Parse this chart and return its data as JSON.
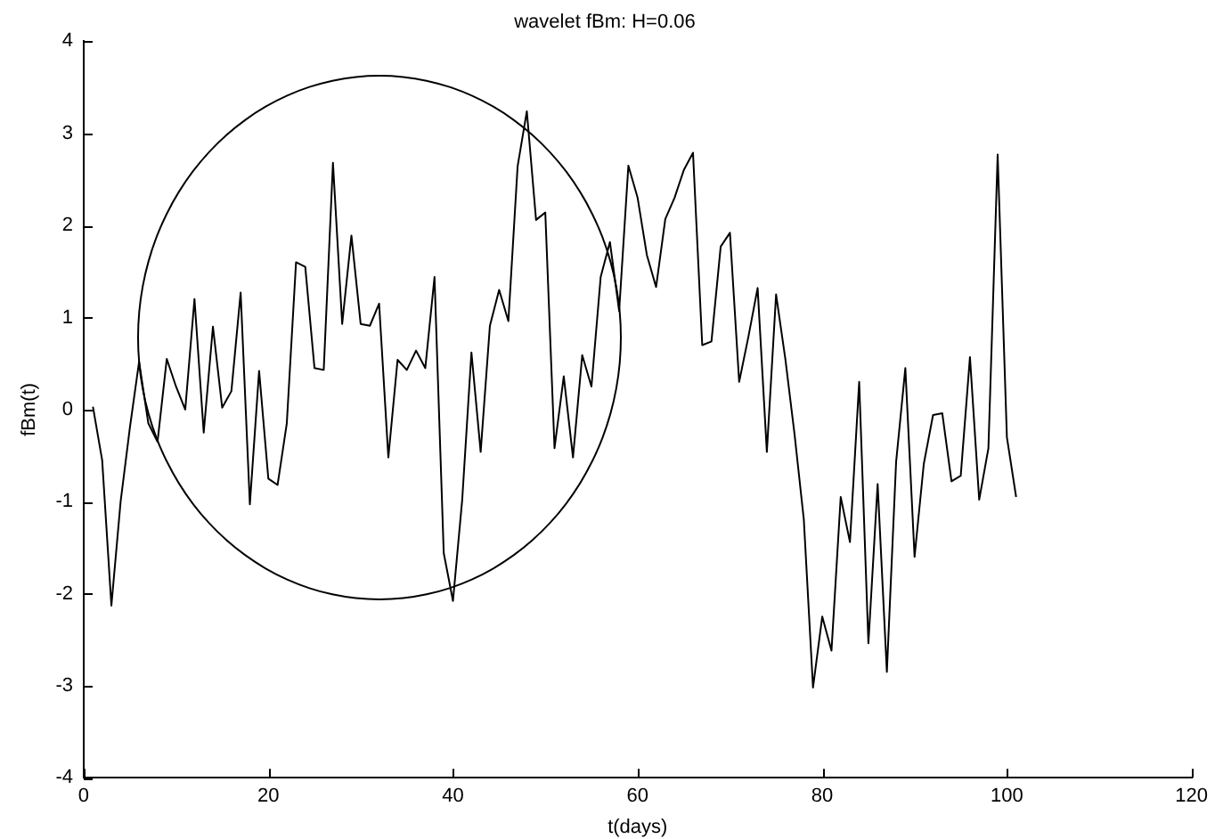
{
  "chart_data": {
    "type": "line",
    "title": "wavelet fBm: H=0.06",
    "xlabel": "t(days)",
    "ylabel": "fBm(t)",
    "x": [
      1,
      2,
      3,
      4,
      5,
      6,
      7,
      8,
      9,
      10,
      11,
      12,
      13,
      14,
      15,
      16,
      17,
      18,
      19,
      20,
      21,
      22,
      23,
      24,
      25,
      26,
      27,
      28,
      29,
      30,
      31,
      32,
      33,
      34,
      35,
      36,
      37,
      38,
      39,
      40,
      41,
      42,
      43,
      44,
      45,
      46,
      47,
      48,
      49,
      50,
      51,
      52,
      53,
      54,
      55,
      56,
      57,
      58,
      59,
      60,
      61,
      62,
      63,
      64,
      65,
      66,
      67,
      68,
      69,
      70,
      71,
      72,
      73,
      74,
      75,
      76,
      77,
      78,
      79,
      80,
      81,
      82,
      83,
      84,
      85,
      86,
      87,
      88,
      89,
      90,
      91,
      92,
      93,
      94,
      95,
      96,
      97,
      98,
      99,
      100,
      101
    ],
    "series": [
      {
        "color": "#000000",
        "values": [
          0.03,
          -0.55,
          -2.13,
          -1.0,
          -0.2,
          0.52,
          -0.15,
          -0.35,
          0.55,
          0.25,
          0.0,
          1.2,
          -0.25,
          0.9,
          0.02,
          0.2,
          1.27,
          -1.03,
          0.42,
          -0.75,
          -0.82,
          -0.15,
          1.6,
          1.55,
          0.45,
          0.43,
          2.68,
          0.93,
          1.89,
          0.93,
          0.91,
          1.15,
          -0.52,
          0.54,
          0.43,
          0.64,
          0.45,
          1.44,
          -1.56,
          -2.08,
          -0.98,
          0.62,
          -0.46,
          0.91,
          1.3,
          0.96,
          2.64,
          3.24,
          2.06,
          2.14,
          -0.42,
          0.36,
          -0.52,
          0.59,
          0.25,
          1.44,
          1.82,
          1.07,
          2.65,
          2.3,
          1.68,
          1.33,
          2.07,
          2.3,
          2.6,
          2.79,
          0.7,
          0.74,
          1.77,
          1.92,
          0.3,
          0.79,
          1.32,
          -0.46,
          1.25,
          0.55,
          -0.27,
          -1.19,
          -3.02,
          -2.25,
          -2.62,
          -0.95,
          -1.44,
          0.3,
          -2.54,
          -0.81,
          -2.85,
          -0.57,
          0.45,
          -1.6,
          -0.59,
          -0.06,
          -0.04,
          -0.78,
          -0.72,
          0.57,
          -0.98,
          -0.42,
          2.77,
          -0.3,
          -0.95
        ]
      }
    ],
    "xlim": [
      0,
      120
    ],
    "xticks": [
      0,
      20,
      40,
      60,
      80,
      100,
      120
    ],
    "ylim": [
      -4,
      4
    ],
    "yticks": [
      -4,
      -3,
      -2,
      -1,
      0,
      1,
      2,
      3,
      4
    ],
    "grid": false,
    "legend": false,
    "marker": "none",
    "line_style": "solid"
  }
}
